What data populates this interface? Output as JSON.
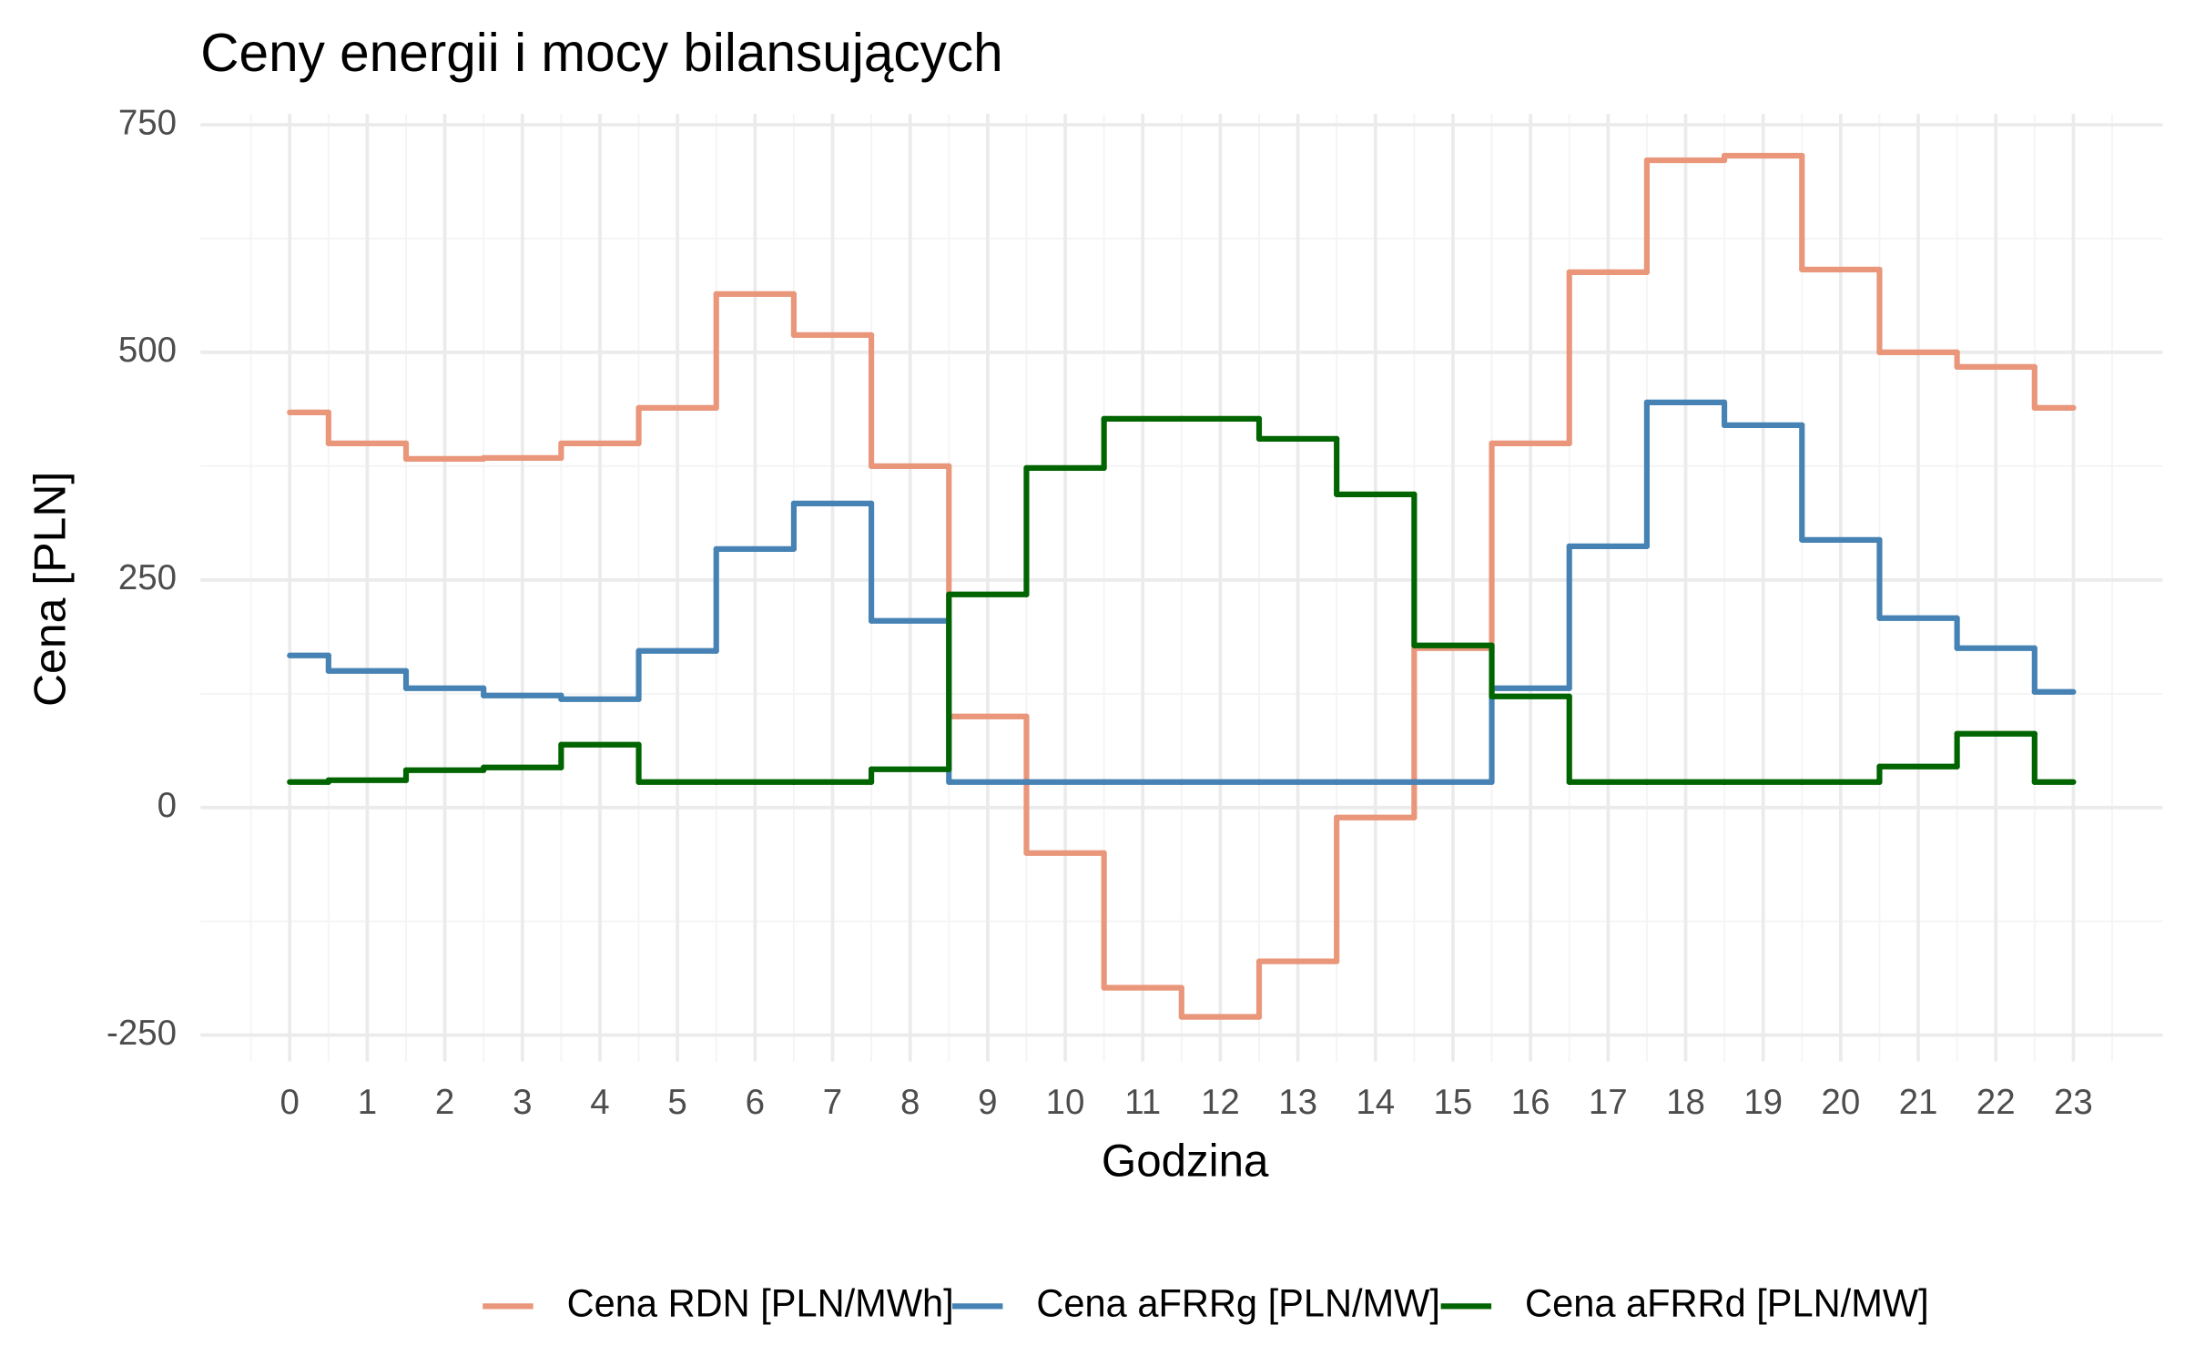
{
  "chart_data": {
    "type": "line",
    "step": "mid",
    "title": "Ceny energii i mocy bilansujących",
    "x_label": "Godzina",
    "y_label": "Cena [PLN]",
    "x": [
      0,
      1,
      2,
      3,
      4,
      5,
      6,
      7,
      8,
      9,
      10,
      11,
      12,
      13,
      14,
      15,
      16,
      17,
      18,
      19,
      20,
      21,
      22,
      23
    ],
    "series": [
      {
        "name": "Cena RDN [PLN/MWh]",
        "color": "#E9967A",
        "values": [
          434,
          400,
          383,
          384,
          400,
          439,
          564,
          519,
          375,
          100,
          -50,
          -198,
          -230,
          -169,
          -11,
          175,
          400,
          588,
          711,
          716,
          591,
          500,
          484,
          439
        ]
      },
      {
        "name": "Cena aFRRg [PLN/MW]",
        "color": "#4682B4",
        "values": [
          167,
          150,
          131,
          123,
          119,
          172,
          284,
          334,
          205,
          28,
          28,
          28,
          28,
          28,
          28,
          28,
          131,
          287,
          445,
          420,
          294,
          208,
          175,
          127
        ]
      },
      {
        "name": "Cena aFRRd [PLN/MW]",
        "color": "#006400",
        "values": [
          28,
          30,
          41,
          44,
          69,
          28,
          28,
          28,
          42,
          234,
          373,
          427,
          427,
          405,
          344,
          178,
          122,
          28,
          28,
          28,
          28,
          45,
          81,
          28
        ]
      }
    ],
    "xlim": [
      -1.15,
      24.15
    ],
    "xticks": [
      0,
      1,
      2,
      3,
      4,
      5,
      6,
      7,
      8,
      9,
      10,
      11,
      12,
      13,
      14,
      15,
      16,
      17,
      18,
      19,
      20,
      21,
      22,
      23
    ],
    "ylim": [
      -279,
      762
    ],
    "yticks": [
      -250,
      0,
      250,
      500,
      750
    ],
    "grid": true,
    "legend": "bottom"
  }
}
